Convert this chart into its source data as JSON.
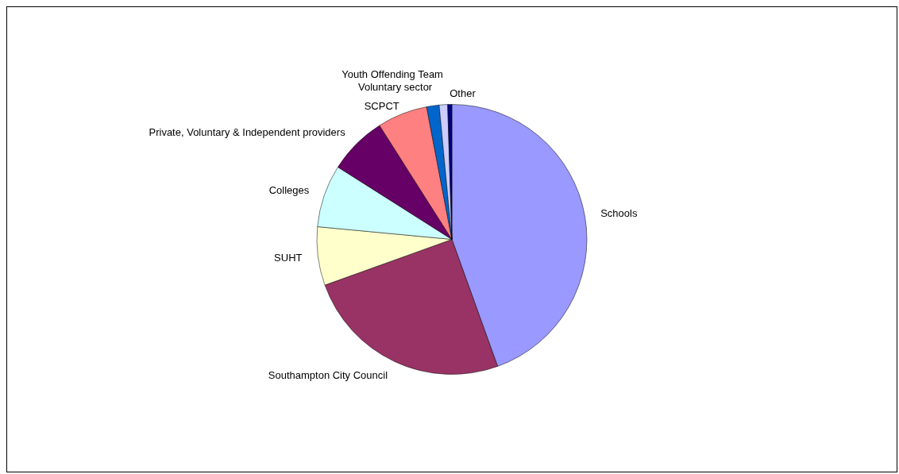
{
  "chart_data": {
    "type": "pie",
    "categories": [
      "Schools",
      "Southampton City Council",
      "SUHT",
      "Colleges",
      "Private, Voluntary & Independent providers",
      "SCPCT",
      "Voluntary sector",
      "Youth Offending Team",
      "Other"
    ],
    "values": [
      44.5,
      25,
      7,
      7.5,
      7,
      6,
      1.5,
      1,
      0.5
    ],
    "colors": [
      "#9999ff",
      "#993366",
      "#ffffcc",
      "#ccffff",
      "#660066",
      "#ff8080",
      "#0066cc",
      "#ccccff",
      "#000080"
    ],
    "legend": false
  }
}
